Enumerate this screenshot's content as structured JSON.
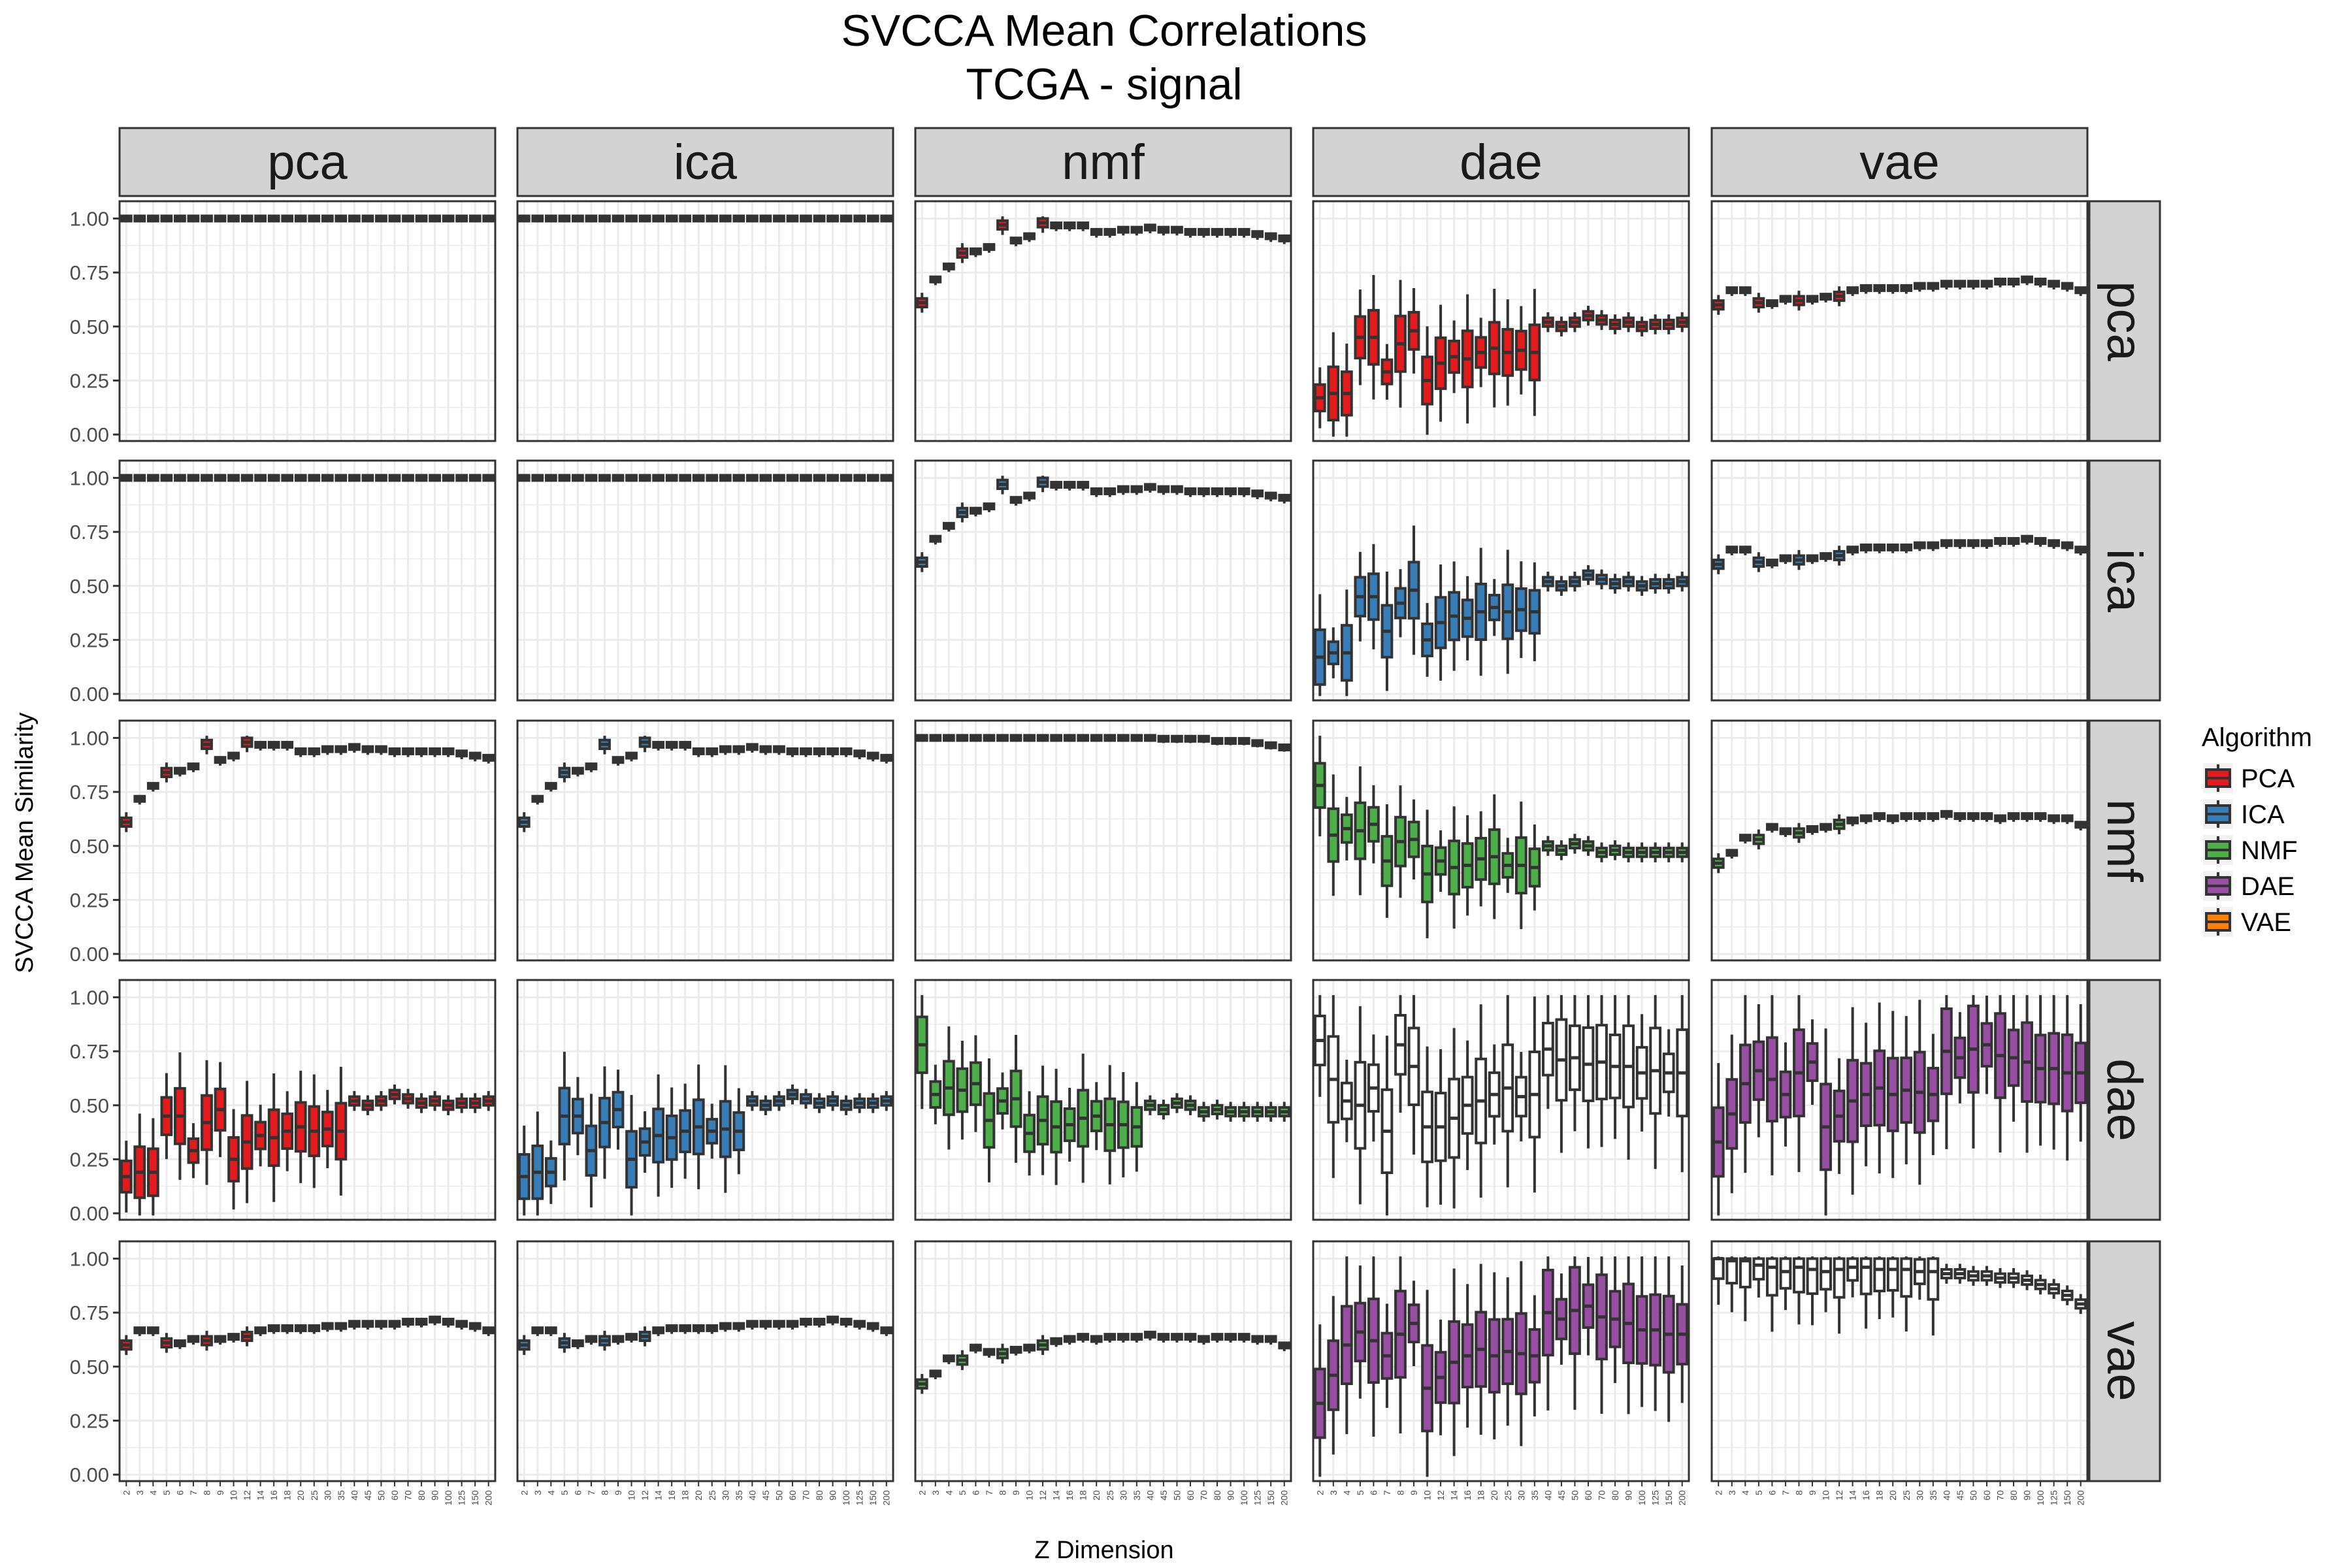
{
  "chart_data": {
    "type": "boxplot-facet-grid",
    "title_lines": [
      "SVCCA Mean Correlations",
      "TCGA - signal"
    ],
    "xlabel": "Z Dimension",
    "ylabel": "SVCCA Mean Similarity",
    "col_facets": [
      "pca",
      "ica",
      "nmf",
      "dae",
      "vae"
    ],
    "row_facets": [
      "pca",
      "ica",
      "nmf",
      "dae",
      "vae"
    ],
    "x_ticks": [
      "2",
      "3",
      "4",
      "5",
      "6",
      "7",
      "8",
      "9",
      "10",
      "12",
      "14",
      "16",
      "18",
      "20",
      "25",
      "30",
      "35",
      "40",
      "45",
      "50",
      "60",
      "70",
      "80",
      "90",
      "100",
      "125",
      "150",
      "200"
    ],
    "y_ticks": [
      "0.00",
      "0.25",
      "0.50",
      "0.75",
      "1.00"
    ],
    "ylim": [
      -0.03,
      1.08
    ],
    "legend": {
      "title": "Algorithm",
      "placement": "right",
      "items": [
        {
          "label": "PCA",
          "color": "#e41a1c"
        },
        {
          "label": "ICA",
          "color": "#377eb8"
        },
        {
          "label": "NMF",
          "color": "#4daf4a"
        },
        {
          "label": "DAE",
          "color": "#984ea3"
        },
        {
          "label": "VAE",
          "color": "#ff7f00"
        }
      ]
    },
    "series_profiles": {
      "flat_one": [
        1.0,
        1.0,
        1.0,
        1.0,
        1.0,
        1.0,
        1.0,
        1.0,
        1.0,
        1.0,
        1.0,
        1.0,
        1.0,
        1.0,
        1.0,
        1.0,
        1.0,
        1.0,
        1.0,
        1.0,
        1.0,
        1.0,
        1.0,
        1.0,
        1.0,
        1.0,
        1.0,
        1.0
      ],
      "nmf_vs_linear": [
        0.61,
        0.71,
        0.77,
        0.84,
        0.84,
        0.86,
        0.97,
        0.89,
        0.91,
        0.98,
        0.96,
        0.96,
        0.96,
        0.93,
        0.93,
        0.94,
        0.94,
        0.95,
        0.94,
        0.94,
        0.93,
        0.93,
        0.93,
        0.93,
        0.93,
        0.92,
        0.91,
        0.9
      ],
      "nmf_vs_nmf": [
        1.0,
        1.0,
        1.0,
        1.0,
        1.0,
        1.0,
        1.0,
        1.0,
        1.0,
        1.0,
        1.0,
        1.0,
        1.0,
        1.0,
        1.0,
        1.0,
        1.0,
        1.0,
        0.99,
        0.99,
        0.99,
        0.99,
        0.98,
        0.98,
        0.98,
        0.97,
        0.96,
        0.95
      ],
      "dae_vs_linear": [
        0.17,
        0.19,
        0.19,
        0.45,
        0.45,
        0.29,
        0.42,
        0.48,
        0.25,
        0.33,
        0.36,
        0.35,
        0.38,
        0.4,
        0.38,
        0.39,
        0.38,
        0.52,
        0.5,
        0.52,
        0.55,
        0.53,
        0.51,
        0.52,
        0.5,
        0.51,
        0.51,
        0.52
      ],
      "dae_vs_nmf": [
        0.78,
        0.55,
        0.58,
        0.57,
        0.6,
        0.43,
        0.52,
        0.53,
        0.37,
        0.43,
        0.4,
        0.41,
        0.44,
        0.45,
        0.41,
        0.41,
        0.4,
        0.5,
        0.48,
        0.51,
        0.5,
        0.47,
        0.48,
        0.47,
        0.47,
        0.47,
        0.47,
        0.47
      ],
      "dae_vs_dae": [
        0.8,
        0.62,
        0.52,
        0.5,
        0.58,
        0.38,
        0.78,
        0.68,
        0.4,
        0.4,
        0.44,
        0.5,
        0.52,
        0.55,
        0.58,
        0.54,
        0.55,
        0.76,
        0.71,
        0.72,
        0.69,
        0.7,
        0.68,
        0.68,
        0.65,
        0.66,
        0.65,
        0.65
      ],
      "dae_vs_vae": [
        0.33,
        0.46,
        0.6,
        0.66,
        0.62,
        0.55,
        0.65,
        0.7,
        0.4,
        0.45,
        0.52,
        0.55,
        0.58,
        0.55,
        0.57,
        0.56,
        0.55,
        0.75,
        0.72,
        0.76,
        0.78,
        0.73,
        0.72,
        0.7,
        0.67,
        0.67,
        0.65,
        0.65
      ],
      "vae_vs_linear": [
        0.6,
        0.66,
        0.66,
        0.61,
        0.6,
        0.62,
        0.62,
        0.62,
        0.63,
        0.64,
        0.66,
        0.67,
        0.67,
        0.67,
        0.67,
        0.68,
        0.68,
        0.69,
        0.69,
        0.69,
        0.69,
        0.7,
        0.7,
        0.71,
        0.7,
        0.69,
        0.68,
        0.66
      ],
      "vae_vs_nmf": [
        0.42,
        0.46,
        0.53,
        0.53,
        0.58,
        0.56,
        0.56,
        0.57,
        0.58,
        0.6,
        0.61,
        0.62,
        0.63,
        0.62,
        0.63,
        0.63,
        0.63,
        0.64,
        0.63,
        0.63,
        0.63,
        0.62,
        0.63,
        0.63,
        0.63,
        0.62,
        0.62,
        0.59
      ],
      "vae_vs_vae": [
        1.0,
        0.99,
        0.99,
        0.97,
        0.96,
        0.94,
        0.96,
        0.95,
        0.94,
        0.95,
        0.96,
        0.96,
        0.95,
        0.95,
        0.95,
        0.94,
        0.94,
        0.93,
        0.93,
        0.92,
        0.92,
        0.91,
        0.91,
        0.9,
        0.88,
        0.86,
        0.83,
        0.79
      ]
    },
    "panels": [
      [
        "flat_one",
        "flat_one",
        "nmf_vs_linear",
        "dae_vs_linear",
        "vae_vs_linear"
      ],
      [
        "flat_one",
        "flat_one",
        "nmf_vs_linear",
        "dae_vs_linear",
        "vae_vs_linear"
      ],
      [
        "nmf_vs_linear",
        "nmf_vs_linear",
        "nmf_vs_nmf",
        "dae_vs_nmf",
        "vae_vs_nmf"
      ],
      [
        "dae_vs_linear",
        "dae_vs_linear",
        "dae_vs_nmf",
        "dae_vs_dae",
        "dae_vs_vae"
      ],
      [
        "vae_vs_linear",
        "vae_vs_linear",
        "vae_vs_nmf",
        "dae_vs_vae",
        "vae_vs_vae"
      ]
    ]
  }
}
